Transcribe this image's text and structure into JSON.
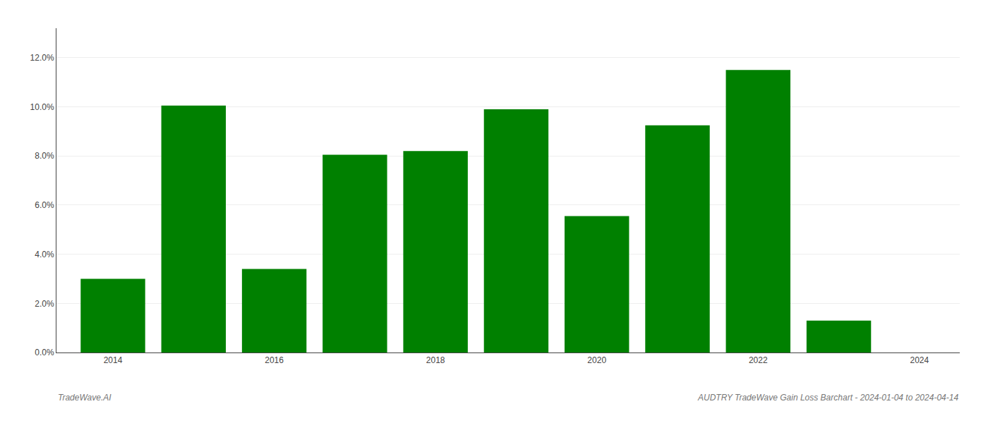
{
  "chart_data": {
    "type": "bar",
    "x": [
      2014,
      2015,
      2016,
      2017,
      2018,
      2019,
      2020,
      2021,
      2022,
      2023
    ],
    "values": [
      0.03,
      0.1005,
      0.034,
      0.0805,
      0.082,
      0.099,
      0.0555,
      0.0925,
      0.115,
      0.013
    ],
    "color": "#008000",
    "xlim": [
      2013.3,
      2024.5
    ],
    "xticks": [
      2014,
      2016,
      2018,
      2020,
      2022,
      2024
    ],
    "ylim": [
      0,
      0.132
    ],
    "yticks": [
      {
        "value": 0.0,
        "label": "0.0%"
      },
      {
        "value": 0.02,
        "label": "2.0%"
      },
      {
        "value": 0.04,
        "label": "4.0%"
      },
      {
        "value": 0.06,
        "label": "6.0%"
      },
      {
        "value": 0.08,
        "label": "8.0%"
      },
      {
        "value": 0.1,
        "label": "10.0%"
      },
      {
        "value": 0.12,
        "label": "12.0%"
      }
    ],
    "grid": true,
    "annotations": [
      "TradeWave.AI",
      "AUDTRY TradeWave Gain Loss Barchart - 2024-01-04 to 2024-04-14"
    ]
  }
}
